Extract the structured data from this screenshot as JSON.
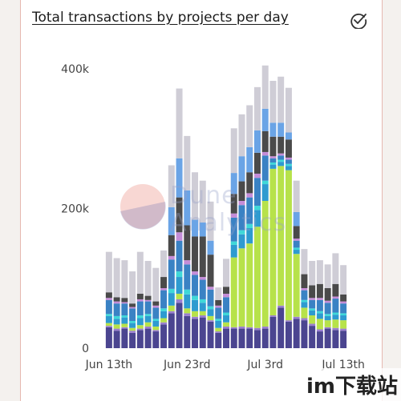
{
  "header": {
    "title": "Total transactions by projects per day",
    "check_icon": "check-circle-icon"
  },
  "watermark": {
    "line1": "Dune",
    "line2": "Analytics"
  },
  "corner_badge": "im下载站",
  "chart_data": {
    "type": "bar",
    "stacked": true,
    "grid": false,
    "legend": "none",
    "x_ticks": [
      "Jun 13th",
      "Jun 23rd",
      "Jul 3rd",
      "Jul 13th"
    ],
    "y_ticks": [
      "0",
      "200k",
      "400k"
    ],
    "ylim": [
      0,
      430000
    ],
    "colors": [
      "#4b4590",
      "#9b7fd0",
      "#b7e24a",
      "#2e9bd0",
      "#3fd8d8",
      "#3a82c4",
      "#c48dd8",
      "#4a4a4a",
      "#6aa4e6",
      "#cfcdd6"
    ],
    "categories": [
      "Jun 13",
      "Jun 14",
      "Jun 15",
      "Jun 16",
      "Jun 17",
      "Jun 18",
      "Jun 19",
      "Jun 20",
      "Jun 21",
      "Jun 22",
      "Jun 23",
      "Jun 24",
      "Jun 25",
      "Jun 26",
      "Jun 27",
      "Jun 28",
      "Jun 29",
      "Jun 30",
      "Jul 1",
      "Jul 2",
      "Jul 3",
      "Jul 4",
      "Jul 5",
      "Jul 6",
      "Jul 7",
      "Jul 8",
      "Jul 9",
      "Jul 10",
      "Jul 11",
      "Jul 12",
      "Jul 13"
    ],
    "series": [
      {
        "values": [
          30000,
          25000,
          28000,
          22000,
          26000,
          28000,
          24000,
          34000,
          50000,
          65000,
          46000,
          42000,
          44000,
          38000,
          22000,
          28000,
          28000,
          28000,
          28000,
          26000,
          28000,
          45000,
          58000,
          38000,
          42000,
          40000,
          32000,
          24000,
          28000,
          26000,
          25000
        ]
      },
      {
        "values": [
          2000,
          3000,
          2000,
          3000,
          2000,
          3000,
          2000,
          3000,
          3000,
          5000,
          4000,
          3000,
          3000,
          2000,
          2000,
          3000,
          2000,
          3000,
          2000,
          3000,
          3000,
          2000,
          3000,
          2000,
          3000,
          3000,
          3000,
          3000,
          2000,
          3000,
          3000
        ]
      },
      {
        "values": [
          4000,
          6000,
          5000,
          4000,
          5000,
          6000,
          5000,
          6000,
          8000,
          8000,
          7000,
          8000,
          6000,
          6000,
          5000,
          6000,
          100000,
          112000,
          120000,
          145000,
          180000,
          210000,
          200000,
          215000,
          90000,
          15000,
          12000,
          15000,
          10000,
          12000,
          12000
        ]
      },
      {
        "values": [
          10000,
          8000,
          9000,
          7000,
          10000,
          9000,
          8000,
          10000,
          18000,
          24000,
          20000,
          16000,
          12000,
          10000,
          10000,
          10000,
          18000,
          20000,
          22000,
          24000,
          24000,
          6000,
          6000,
          6000,
          6000,
          8000,
          7000,
          8000,
          6000,
          7000,
          7000
        ]
      },
      {
        "values": [
          3000,
          4000,
          3000,
          3000,
          4000,
          3000,
          3000,
          4000,
          6000,
          8000,
          7000,
          6000,
          5000,
          4000,
          3000,
          4000,
          5000,
          6000,
          6000,
          6000,
          5000,
          3000,
          3000,
          3000,
          3000,
          3000,
          3000,
          3000,
          3000,
          3000,
          3000
        ]
      },
      {
        "values": [
          20000,
          18000,
          17000,
          18000,
          20000,
          18000,
          16000,
          26000,
          42000,
          44000,
          36000,
          30000,
          28000,
          24000,
          16000,
          22000,
          34000,
          36000,
          38000,
          40000,
          36000,
          6000,
          6000,
          6000,
          10000,
          14000,
          12000,
          16000,
          16000,
          20000,
          14000
        ]
      },
      {
        "values": [
          3000,
          3000,
          2000,
          2000,
          3000,
          2000,
          3000,
          3000,
          5000,
          12000,
          6000,
          5000,
          4000,
          4000,
          3000,
          5000,
          6000,
          6000,
          6000,
          6000,
          5000,
          3000,
          3000,
          3000,
          3000,
          3000,
          3000,
          3000,
          3000,
          3000,
          3000
        ]
      },
      {
        "values": [
          8000,
          6000,
          6000,
          5000,
          8000,
          6000,
          6000,
          16000,
          30000,
          50000,
          50000,
          50000,
          58000,
          46000,
          8000,
          10000,
          28000,
          28000,
          30000,
          30000,
          30000,
          28000,
          24000,
          26000,
          18000,
          20000,
          18000,
          20000,
          18000,
          18000,
          10000
        ]
      },
      {
        "values": [
          0,
          0,
          0,
          0,
          0,
          0,
          0,
          0,
          40000,
          56000,
          50000,
          24000,
          20000,
          20000,
          0,
          0,
          30000,
          36000,
          36000,
          32000,
          32000,
          20000,
          20000,
          10000,
          20000,
          0,
          0,
          0,
          0,
          0,
          0
        ]
      },
      {
        "values": [
          58000,
          56000,
          54000,
          46000,
          60000,
          50000,
          48000,
          38000,
          60000,
          100000,
          78000,
          68000,
          60000,
          56000,
          18000,
          40000,
          64000,
          60000,
          60000,
          62000,
          62000,
          60000,
          66000,
          64000,
          45000,
          36000,
          35000,
          34000,
          34000,
          44000,
          42000
        ]
      }
    ]
  }
}
